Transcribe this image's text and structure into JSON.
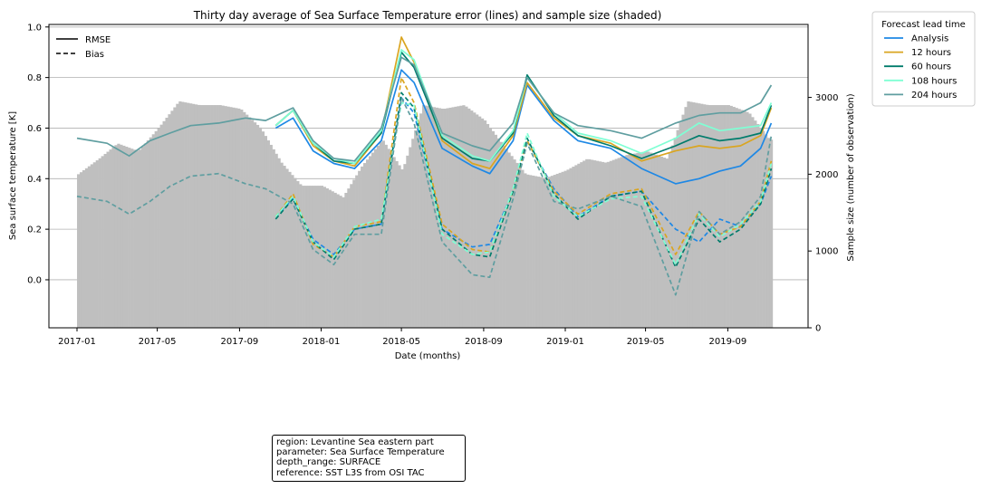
{
  "chart_data": {
    "type": "line",
    "title": "Thirty day average of Sea Surface Temperature error (lines) and sample size (shaded)",
    "xlabel": "Date (months)",
    "ylabel": "Sea surface temperature [K]",
    "y2label": "Sample size (number of observation)",
    "x_ticks": [
      "2017-01",
      "2017-05",
      "2017-09",
      "2018-01",
      "2018-05",
      "2018-09",
      "2019-01",
      "2019-05",
      "2019-09"
    ],
    "y_ticks": [
      "0.0",
      "0.2",
      "0.4",
      "0.6",
      "0.8",
      "1.0"
    ],
    "y2_ticks": [
      "0",
      "1000",
      "2000",
      "3000"
    ],
    "ylim": [
      -0.19,
      1.01
    ],
    "y2lim": [
      0,
      3950
    ],
    "xlim": [
      "2016-11-20",
      "2019-12-30"
    ],
    "grid": "horizontal",
    "style_legend": {
      "placement": "top-left",
      "entries": [
        {
          "label": "RMSE",
          "style": "solid"
        },
        {
          "label": "Bias",
          "style": "dashed"
        }
      ]
    },
    "legend": {
      "title": "Forecast lead time",
      "placement": "outside-top-right",
      "entries": [
        "Analysis",
        "12 hours",
        "60 hours",
        "108 hours",
        "204 hours"
      ]
    },
    "colors": {
      "Analysis": "#1e88e5",
      "12 hours": "#daa520",
      "60 hours": "#007c6c",
      "108 hours": "#7fffd4",
      "204 hours": "#5f9ea0",
      "sample_size": "#bfbfbf"
    },
    "sample_size": {
      "dates": [
        "2017-01-01",
        "2017-02-01",
        "2017-03-01",
        "2017-04-01",
        "2017-05-01",
        "2017-06-01",
        "2017-07-01",
        "2017-08-01",
        "2017-09-01",
        "2017-10-01",
        "2017-11-01",
        "2017-12-01",
        "2018-01-01",
        "2018-02-01",
        "2018-03-01",
        "2018-04-01",
        "2018-05-01",
        "2018-06-01",
        "2018-07-01",
        "2018-08-01",
        "2018-09-01",
        "2018-10-01",
        "2018-11-01",
        "2018-12-01",
        "2019-01-01",
        "2019-02-01",
        "2019-03-01",
        "2019-04-01",
        "2019-05-01",
        "2019-06-01",
        "2019-07-01",
        "2019-08-01",
        "2019-09-01",
        "2019-10-01",
        "2019-11-01"
      ],
      "values": [
        2000,
        2200,
        2400,
        2300,
        2600,
        2950,
        2900,
        2900,
        2850,
        2600,
        2150,
        1850,
        1850,
        1700,
        2100,
        2450,
        2050,
        2900,
        2850,
        2900,
        2700,
        2350,
        2000,
        1950,
        2050,
        2200,
        2150,
        2250,
        2300,
        2200,
        2950,
        2900,
        2900,
        2800,
        2450
      ]
    },
    "series": [
      {
        "name": "Analysis",
        "metric": "RMSE",
        "dates": [
          "2017-10-25",
          "2017-11-20",
          "2017-12-20",
          "2018-01-20",
          "2018-02-20",
          "2018-04-01",
          "2018-05-01",
          "2018-05-20",
          "2018-07-01",
          "2018-08-15",
          "2018-09-10",
          "2018-10-15",
          "2018-11-05",
          "2018-12-15",
          "2019-01-20",
          "2019-03-10",
          "2019-04-25",
          "2019-06-15",
          "2019-07-20",
          "2019-08-20",
          "2019-09-20",
          "2019-10-20",
          "2019-11-05"
        ],
        "values": [
          0.6,
          0.64,
          0.51,
          0.46,
          0.44,
          0.55,
          0.83,
          0.78,
          0.52,
          0.45,
          0.42,
          0.55,
          0.77,
          0.63,
          0.55,
          0.52,
          0.44,
          0.38,
          0.4,
          0.43,
          0.45,
          0.52,
          0.62
        ]
      },
      {
        "name": "12 hours",
        "metric": "RMSE",
        "dates": [
          "2017-10-25",
          "2017-11-20",
          "2017-12-20",
          "2018-01-20",
          "2018-02-20",
          "2018-04-01",
          "2018-05-01",
          "2018-05-20",
          "2018-07-01",
          "2018-08-15",
          "2018-09-10",
          "2018-10-15",
          "2018-11-05",
          "2018-12-15",
          "2019-01-20",
          "2019-03-10",
          "2019-04-25",
          "2019-06-15",
          "2019-07-20",
          "2019-08-20",
          "2019-09-20",
          "2019-10-20",
          "2019-11-05"
        ],
        "values": [
          0.61,
          0.67,
          0.53,
          0.47,
          0.45,
          0.58,
          0.96,
          0.86,
          0.55,
          0.46,
          0.44,
          0.57,
          0.78,
          0.64,
          0.57,
          0.54,
          0.47,
          0.51,
          0.53,
          0.52,
          0.53,
          0.57,
          0.68
        ]
      },
      {
        "name": "60 hours",
        "metric": "RMSE",
        "dates": [
          "2017-10-25",
          "2017-11-20",
          "2017-12-20",
          "2018-01-20",
          "2018-02-20",
          "2018-04-01",
          "2018-05-01",
          "2018-05-20",
          "2018-07-01",
          "2018-08-15",
          "2018-09-10",
          "2018-10-15",
          "2018-11-05",
          "2018-12-15",
          "2019-01-20",
          "2019-03-10",
          "2019-04-25",
          "2019-06-15",
          "2019-07-20",
          "2019-08-20",
          "2019-09-20",
          "2019-10-20",
          "2019-11-05"
        ],
        "values": [
          0.61,
          0.67,
          0.54,
          0.47,
          0.46,
          0.58,
          0.9,
          0.84,
          0.56,
          0.48,
          0.47,
          0.58,
          0.81,
          0.65,
          0.57,
          0.53,
          0.48,
          0.53,
          0.57,
          0.55,
          0.56,
          0.58,
          0.69
        ]
      },
      {
        "name": "108 hours",
        "metric": "RMSE",
        "dates": [
          "2017-10-25",
          "2017-11-20",
          "2017-12-20",
          "2018-01-20",
          "2018-02-20",
          "2018-04-01",
          "2018-05-01",
          "2018-05-20",
          "2018-07-01",
          "2018-08-15",
          "2018-09-10",
          "2018-10-15",
          "2018-11-05",
          "2018-12-15",
          "2019-01-20",
          "2019-03-10",
          "2019-04-25",
          "2019-06-15",
          "2019-07-20",
          "2019-08-20",
          "2019-09-20",
          "2019-10-20",
          "2019-11-05"
        ],
        "values": [
          0.61,
          0.67,
          0.54,
          0.48,
          0.46,
          0.59,
          0.91,
          0.87,
          0.57,
          0.49,
          0.47,
          0.59,
          0.8,
          0.66,
          0.58,
          0.55,
          0.5,
          0.56,
          0.62,
          0.59,
          0.6,
          0.61,
          0.7
        ]
      },
      {
        "name": "204 hours",
        "metric": "RMSE",
        "dates": [
          "2017-01-01",
          "2017-02-15",
          "2017-03-20",
          "2017-04-20",
          "2017-05-20",
          "2017-06-20",
          "2017-08-01",
          "2017-09-10",
          "2017-10-10",
          "2017-11-20",
          "2017-12-20",
          "2018-01-20",
          "2018-02-20",
          "2018-04-01",
          "2018-05-01",
          "2018-05-20",
          "2018-07-01",
          "2018-08-15",
          "2018-09-10",
          "2018-10-15",
          "2018-11-05",
          "2018-12-15",
          "2019-01-20",
          "2019-03-10",
          "2019-04-25",
          "2019-06-15",
          "2019-07-20",
          "2019-08-20",
          "2019-09-20",
          "2019-10-20",
          "2019-11-05"
        ],
        "values": [
          0.56,
          0.54,
          0.49,
          0.55,
          0.58,
          0.61,
          0.62,
          0.64,
          0.63,
          0.68,
          0.55,
          0.48,
          0.47,
          0.6,
          0.88,
          0.85,
          0.58,
          0.53,
          0.51,
          0.62,
          0.8,
          0.66,
          0.61,
          0.59,
          0.56,
          0.62,
          0.65,
          0.66,
          0.66,
          0.7,
          0.77
        ]
      },
      {
        "name": "Analysis",
        "metric": "Bias",
        "dates": [
          "2017-10-25",
          "2017-11-20",
          "2017-12-20",
          "2018-01-20",
          "2018-02-20",
          "2018-04-01",
          "2018-05-01",
          "2018-05-20",
          "2018-07-01",
          "2018-08-15",
          "2018-09-10",
          "2018-10-15",
          "2018-11-05",
          "2018-12-15",
          "2019-01-20",
          "2019-03-10",
          "2019-04-25",
          "2019-06-15",
          "2019-07-20",
          "2019-08-20",
          "2019-09-20",
          "2019-10-20",
          "2019-11-05"
        ],
        "values": [
          0.25,
          0.32,
          0.16,
          0.1,
          0.2,
          0.22,
          0.72,
          0.66,
          0.2,
          0.13,
          0.14,
          0.35,
          0.55,
          0.36,
          0.25,
          0.33,
          0.35,
          0.2,
          0.15,
          0.24,
          0.21,
          0.3,
          0.41
        ]
      },
      {
        "name": "12 hours",
        "metric": "Bias",
        "dates": [
          "2017-10-25",
          "2017-11-20",
          "2017-12-20",
          "2018-01-20",
          "2018-02-20",
          "2018-04-01",
          "2018-05-01",
          "2018-05-20",
          "2018-07-01",
          "2018-08-15",
          "2018-09-10",
          "2018-10-15",
          "2018-11-05",
          "2018-12-15",
          "2019-01-20",
          "2019-03-10",
          "2019-04-25",
          "2019-06-15",
          "2019-07-20",
          "2019-08-20",
          "2019-09-20",
          "2019-10-20",
          "2019-11-05"
        ],
        "values": [
          0.25,
          0.34,
          0.14,
          0.09,
          0.21,
          0.23,
          0.8,
          0.7,
          0.22,
          0.12,
          0.11,
          0.35,
          0.55,
          0.35,
          0.26,
          0.34,
          0.36,
          0.1,
          0.27,
          0.18,
          0.21,
          0.31,
          0.47
        ]
      },
      {
        "name": "60 hours",
        "metric": "Bias",
        "dates": [
          "2017-10-25",
          "2017-11-20",
          "2017-12-20",
          "2018-01-20",
          "2018-02-20",
          "2018-04-01",
          "2018-05-01",
          "2018-05-20",
          "2018-07-01",
          "2018-08-15",
          "2018-09-10",
          "2018-10-15",
          "2018-11-05",
          "2018-12-15",
          "2019-01-20",
          "2019-03-10",
          "2019-04-25",
          "2019-06-15",
          "2019-07-20",
          "2019-08-20",
          "2019-09-20",
          "2019-10-20",
          "2019-11-05"
        ],
        "values": [
          0.24,
          0.32,
          0.15,
          0.08,
          0.2,
          0.22,
          0.74,
          0.68,
          0.2,
          0.1,
          0.09,
          0.35,
          0.56,
          0.34,
          0.24,
          0.33,
          0.35,
          0.05,
          0.24,
          0.15,
          0.2,
          0.3,
          0.44
        ]
      },
      {
        "name": "108 hours",
        "metric": "Bias",
        "dates": [
          "2017-10-25",
          "2017-11-20",
          "2017-12-20",
          "2018-01-20",
          "2018-02-20",
          "2018-04-01",
          "2018-05-01",
          "2018-05-20",
          "2018-07-01",
          "2018-08-15",
          "2018-09-10",
          "2018-10-15",
          "2018-11-05",
          "2018-12-15",
          "2019-01-20",
          "2019-03-10",
          "2019-04-25",
          "2019-06-15",
          "2019-07-20",
          "2019-08-20",
          "2019-09-20",
          "2019-10-20",
          "2019-11-05"
        ],
        "values": [
          0.25,
          0.33,
          0.15,
          0.09,
          0.21,
          0.24,
          0.7,
          0.69,
          0.18,
          0.1,
          0.11,
          0.36,
          0.58,
          0.33,
          0.25,
          0.32,
          0.33,
          0.06,
          0.26,
          0.17,
          0.22,
          0.31,
          0.46
        ]
      },
      {
        "name": "204 hours",
        "metric": "Bias",
        "dates": [
          "2017-01-01",
          "2017-02-15",
          "2017-03-20",
          "2017-04-20",
          "2017-05-20",
          "2017-06-20",
          "2017-08-01",
          "2017-09-10",
          "2017-10-10",
          "2017-11-20",
          "2017-12-20",
          "2018-01-20",
          "2018-02-20",
          "2018-04-01",
          "2018-05-01",
          "2018-05-20",
          "2018-07-01",
          "2018-08-15",
          "2018-09-10",
          "2018-10-15",
          "2018-11-05",
          "2018-12-15",
          "2019-01-20",
          "2019-03-10",
          "2019-04-25",
          "2019-06-15",
          "2019-07-20",
          "2019-08-20",
          "2019-09-20",
          "2019-10-20",
          "2019-11-05"
        ],
        "values": [
          0.33,
          0.31,
          0.26,
          0.31,
          0.37,
          0.41,
          0.42,
          0.38,
          0.36,
          0.3,
          0.12,
          0.06,
          0.18,
          0.18,
          0.72,
          0.62,
          0.15,
          0.02,
          0.01,
          0.32,
          0.54,
          0.31,
          0.28,
          0.33,
          0.29,
          -0.06,
          0.27,
          0.18,
          0.23,
          0.33,
          0.57
        ]
      }
    ]
  },
  "info_box": {
    "region": "region: Levantine Sea eastern part",
    "parameter": "parameter: Sea Surface Temperature",
    "depth_range": "depth_range: SURFACE",
    "reference": "reference: SST L3S from OSI TAC"
  }
}
